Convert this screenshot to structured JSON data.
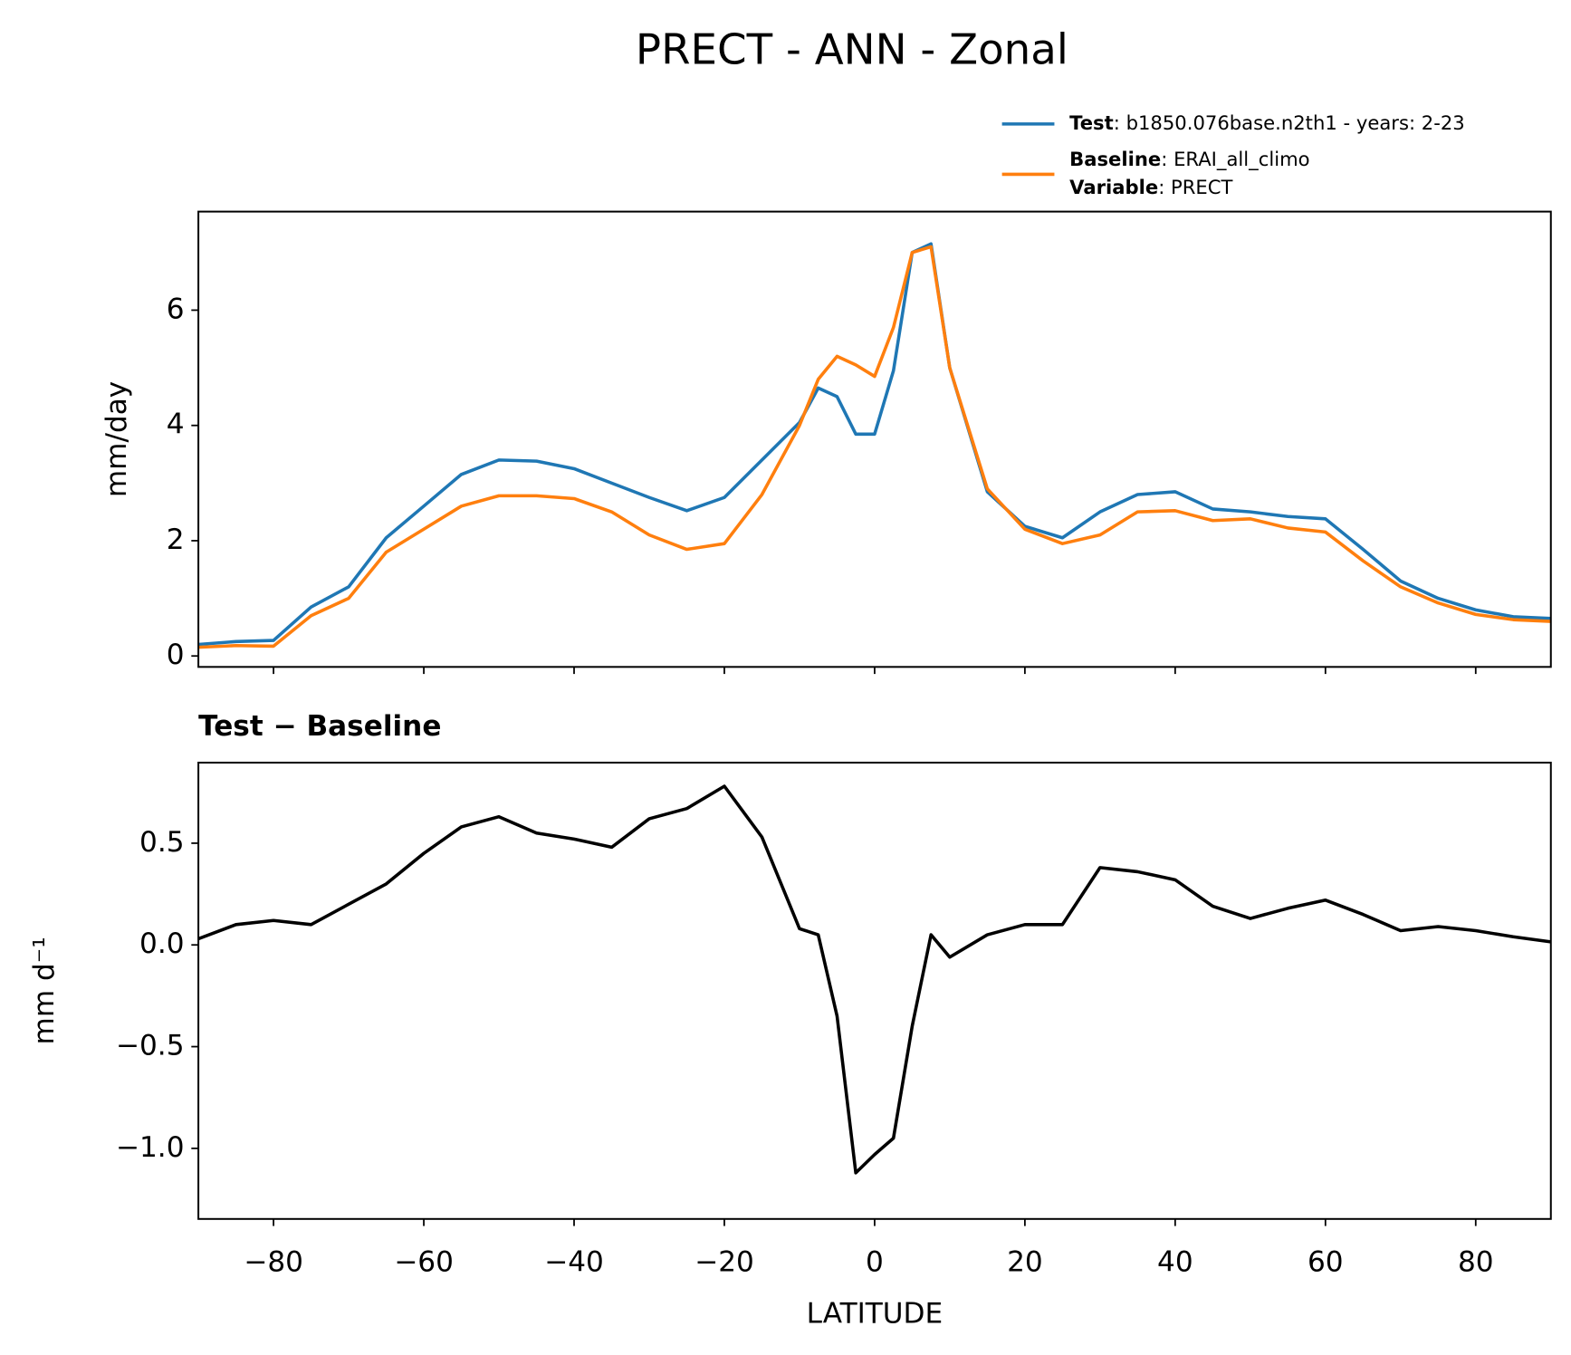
{
  "title": "PRECT - ANN - Zonal",
  "chart_data": [
    {
      "type": "line",
      "ylabel": "mm/day",
      "x": [
        -90,
        -85,
        -80,
        -75,
        -70,
        -65,
        -60,
        -55,
        -50,
        -45,
        -40,
        -35,
        -30,
        -25,
        -20,
        -15,
        -10,
        -7.5,
        -5,
        -2.5,
        0,
        2.5,
        5,
        7.5,
        10,
        15,
        20,
        25,
        30,
        35,
        40,
        45,
        50,
        55,
        60,
        65,
        70,
        75,
        80,
        85,
        90
      ],
      "series": [
        {
          "name": "Test: b1850.076base.n2th1 - years: 2-23",
          "color": "#1f77b4",
          "values": [
            0.2,
            0.25,
            0.27,
            0.85,
            1.2,
            2.05,
            2.6,
            3.15,
            3.4,
            3.38,
            3.25,
            3.0,
            2.75,
            2.52,
            2.75,
            3.4,
            4.05,
            4.65,
            4.5,
            3.85,
            3.85,
            4.95,
            7.0,
            7.15,
            5.0,
            2.85,
            2.25,
            2.05,
            2.5,
            2.8,
            2.85,
            2.55,
            2.5,
            2.42,
            2.38,
            1.85,
            1.3,
            1.0,
            0.8,
            0.68,
            0.65
          ]
        },
        {
          "name": "Baseline: ERAI_all_climo\nVariable: PRECT",
          "color": "#ff7f0e",
          "values": [
            0.15,
            0.18,
            0.17,
            0.7,
            1.0,
            1.8,
            2.2,
            2.6,
            2.78,
            2.78,
            2.73,
            2.5,
            2.1,
            1.85,
            1.95,
            2.8,
            4.0,
            4.8,
            5.2,
            5.05,
            4.85,
            5.7,
            7.0,
            7.1,
            5.0,
            2.9,
            2.2,
            1.95,
            2.1,
            2.5,
            2.52,
            2.35,
            2.38,
            2.22,
            2.15,
            1.65,
            1.2,
            0.92,
            0.72,
            0.63,
            0.6
          ]
        }
      ],
      "xlim": [
        -90,
        90
      ],
      "xticks": [
        -80,
        -60,
        -40,
        -20,
        0,
        20,
        40,
        60,
        80
      ],
      "xticklabels": false,
      "ylim": [
        -0.19,
        7.71
      ],
      "yticks": [
        0,
        2,
        4,
        6
      ],
      "legend": "above-right"
    },
    {
      "type": "line",
      "title": "Test − Baseline",
      "ylabel": "mm d⁻¹",
      "xlabel": "LATITUDE",
      "x": [
        -90,
        -85,
        -80,
        -75,
        -70,
        -65,
        -60,
        -55,
        -50,
        -45,
        -40,
        -35,
        -30,
        -25,
        -20,
        -15,
        -10,
        -7.5,
        -5,
        -2.5,
        0,
        2.5,
        5,
        7.5,
        10,
        15,
        20,
        25,
        30,
        35,
        40,
        45,
        50,
        55,
        60,
        65,
        70,
        75,
        80,
        85,
        90
      ],
      "series": [
        {
          "color": "#000000",
          "values": [
            0.03,
            0.1,
            0.12,
            0.1,
            0.2,
            0.3,
            0.45,
            0.58,
            0.63,
            0.55,
            0.52,
            0.48,
            0.62,
            0.67,
            0.78,
            0.53,
            0.08,
            0.05,
            -0.35,
            -1.12,
            -1.03,
            -0.95,
            -0.4,
            0.05,
            -0.06,
            0.05,
            0.1,
            0.1,
            0.38,
            0.36,
            0.32,
            0.19,
            0.13,
            0.18,
            0.22,
            0.15,
            0.07,
            0.09,
            0.07,
            0.04,
            0.015
          ]
        }
      ],
      "xlim": [
        -90,
        90
      ],
      "xticks": [
        {
          "value": -80,
          "label": "−80"
        },
        {
          "value": -60,
          "label": "−60"
        },
        {
          "value": -40,
          "label": "−40"
        },
        {
          "value": -20,
          "label": "−20"
        },
        0,
        20,
        40,
        60,
        80
      ],
      "xticklabels": true,
      "ylim": [
        -1.347,
        0.896
      ],
      "yticks": [
        {
          "value": -1.0,
          "label": "−1.0"
        },
        {
          "value": -0.5,
          "label": "−0.5"
        },
        {
          "value": 0,
          "label": "0.0"
        },
        {
          "value": 0.5,
          "label": "0.5"
        }
      ]
    }
  ]
}
